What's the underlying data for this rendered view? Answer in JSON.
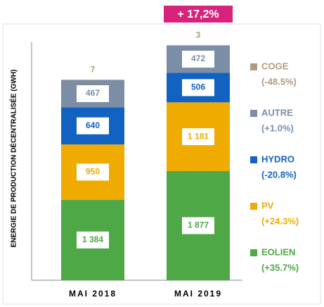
{
  "chart_data": {
    "type": "stacked-bar",
    "y_label": "ENERGIE DE PRODUCTION DÉCENTRALISÉE (GWH)",
    "categories": [
      "MAI 2018",
      "MAI 2019"
    ],
    "annotation": "+ 17,2%",
    "ylim": [
      0,
      4200
    ],
    "series": [
      {
        "name": "EOLIEN",
        "change": "(+35.7%)",
        "color": "#4ea846",
        "values": [
          1384,
          1877
        ],
        "value_labels": [
          "1 384",
          "1 877"
        ]
      },
      {
        "name": "PV",
        "change": "(+24.3%)",
        "color": "#f0ab00",
        "values": [
          950,
          1181
        ],
        "value_labels": [
          "950",
          "1 181"
        ]
      },
      {
        "name": "HYDRO",
        "change": "(-20.8%)",
        "color": "#1162c1",
        "values": [
          640,
          506
        ]
      },
      {
        "name": "AUTRE",
        "change": "(+1.0%)",
        "color": "#7b8ea6",
        "values": [
          467,
          472
        ]
      },
      {
        "name": "COGE",
        "change": "(-48.5%)",
        "color": "#b09b80",
        "values": [
          7,
          3
        ]
      }
    ]
  }
}
